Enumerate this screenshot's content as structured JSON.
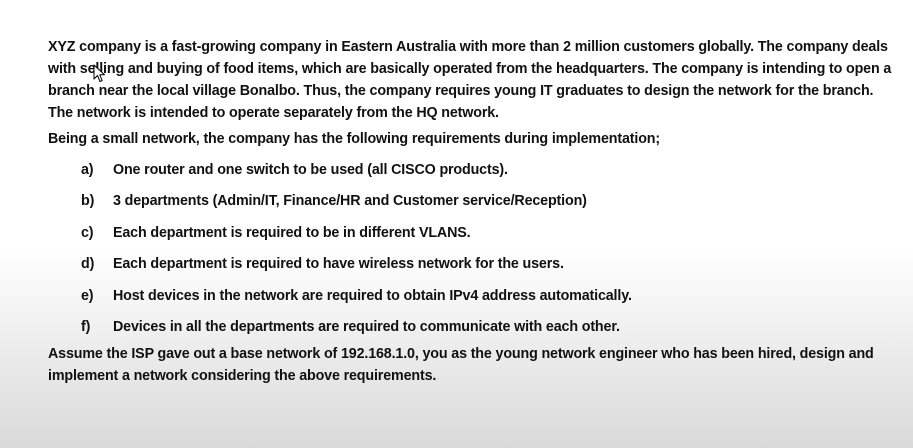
{
  "intro": "XYZ company is a fast-growing company in Eastern Australia with more than 2 million customers globally. The company deals with selling and buying of food items, which are basically operated from the headquarters. The company is intending to open a branch near the local village Bonalbo. Thus, the company requires young IT graduates to design the network for the branch. The network is intended to operate separately from the HQ network.",
  "lead_in": "Being a small network, the company has the following requirements during implementation;",
  "requirements": [
    {
      "letter": "a)",
      "text": "One router and one switch to be used (all CISCO products)."
    },
    {
      "letter": "b)",
      "text": "3 departments (Admin/IT, Finance/HR and Customer service/Reception)"
    },
    {
      "letter": "c)",
      "text": "Each department is required to be in different VLANS."
    },
    {
      "letter": "d)",
      "text": "Each department is required to have wireless network for the users."
    },
    {
      "letter": "e)",
      "text": "Host devices in the network are required to obtain IPv4 address automatically."
    },
    {
      "letter": "f)",
      "text": "Devices in all the departments are required to communicate with each other."
    }
  ],
  "closing": "Assume the ISP gave out a base network of 192.168.1.0, you as the young network engineer who has been hired, design and implement a network considering the above requirements."
}
